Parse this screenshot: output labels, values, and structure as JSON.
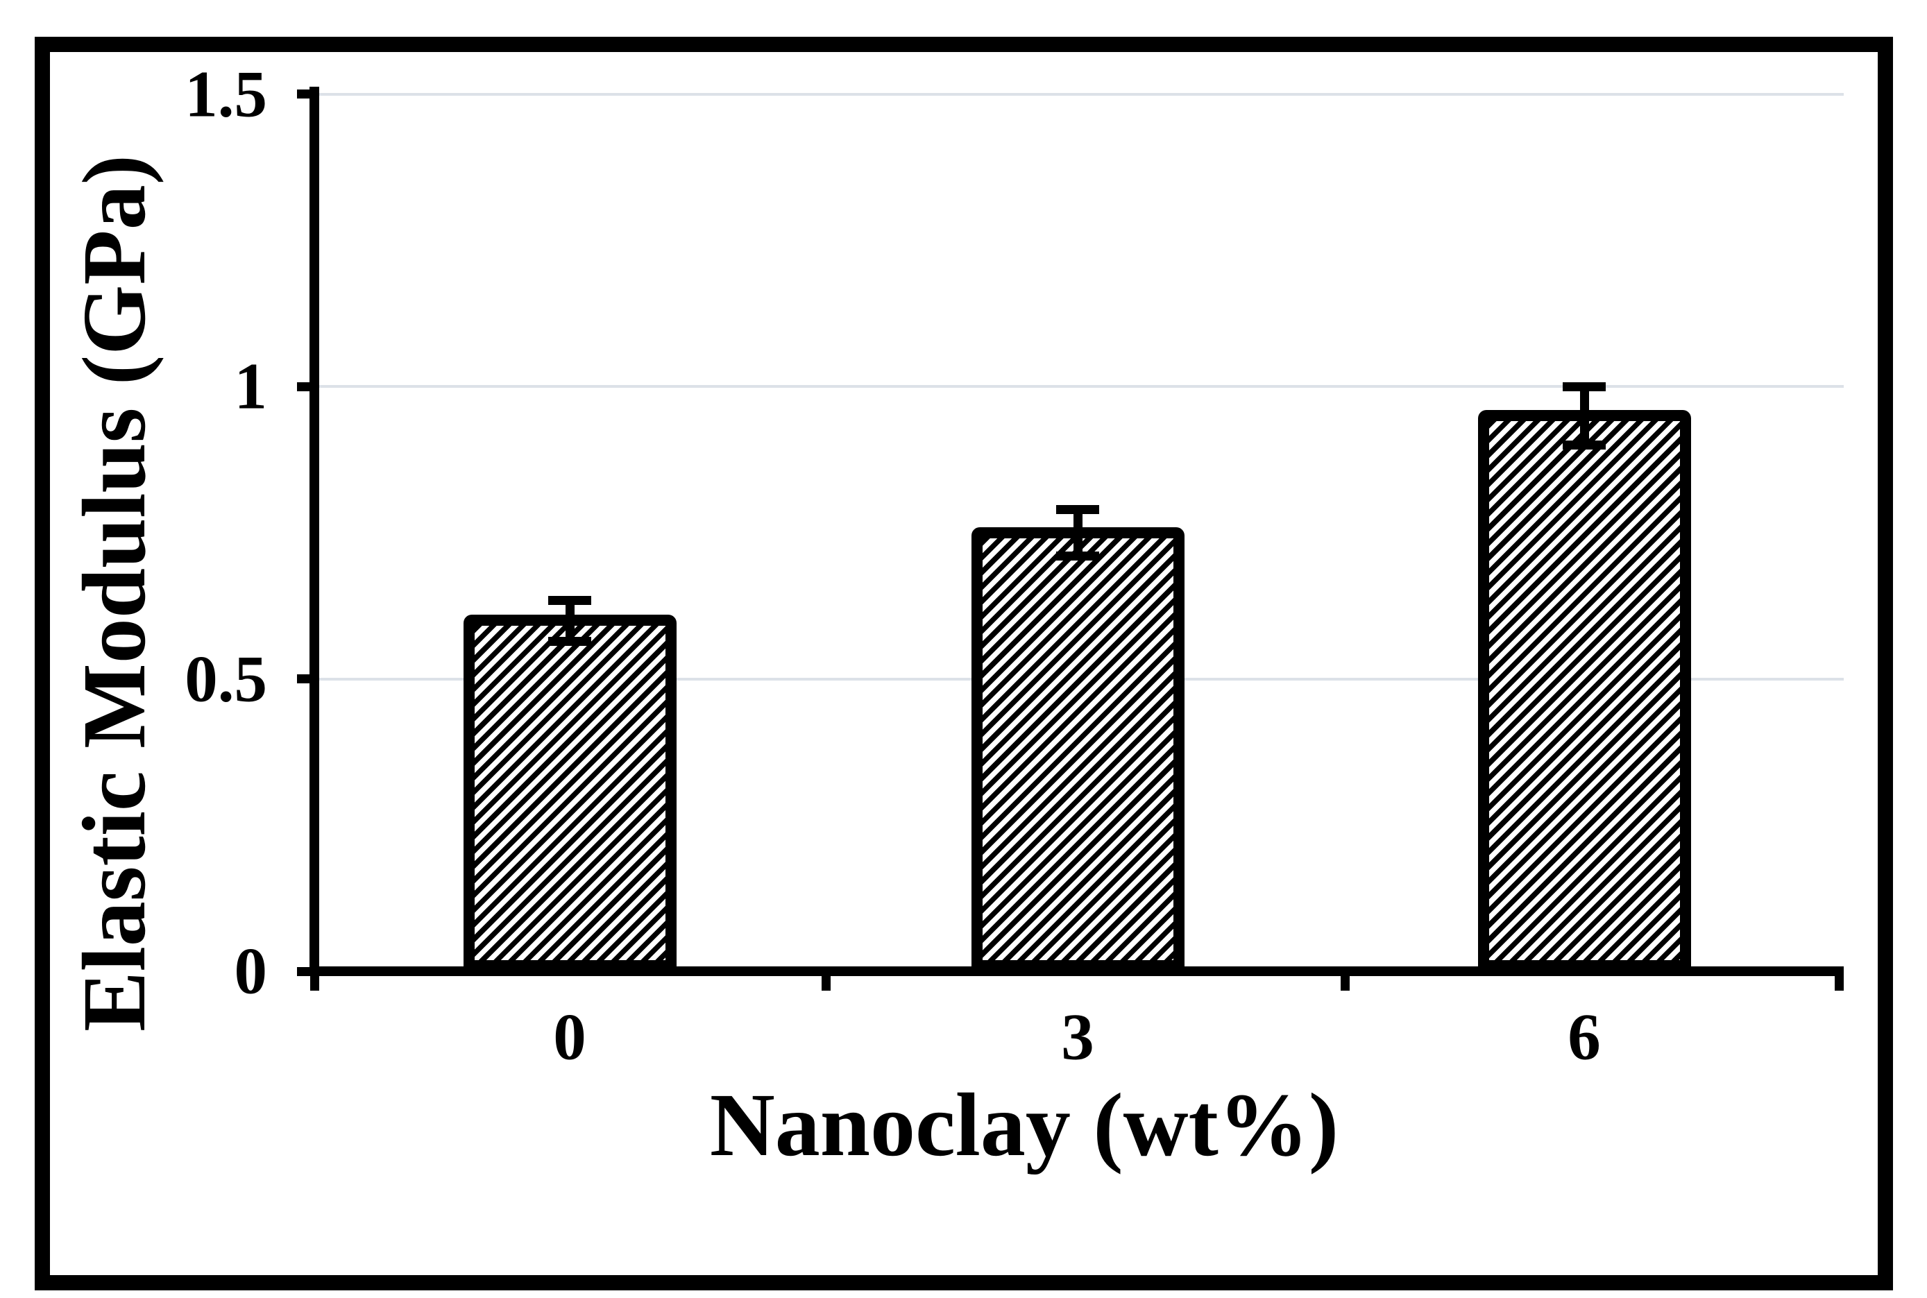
{
  "figure": {
    "background": "#ffffff",
    "border_color": "#000000",
    "accent_color": "#000000",
    "gridline_color": "#dce1e8"
  },
  "chart_data": {
    "type": "bar",
    "title": "",
    "categories": [
      "0",
      "3",
      "6"
    ],
    "values": [
      0.6,
      0.75,
      0.95
    ],
    "errors": [
      0.035,
      0.04,
      0.05
    ],
    "xlabel": "Nanoclay (wt%)",
    "ylabel": "Elastic Modulus (GPa)",
    "ylim": [
      0,
      1.5
    ],
    "yticks": [
      0,
      0.5,
      1,
      1.5
    ],
    "ytick_labels": [
      "0",
      "0.5",
      "1",
      "1.5"
    ],
    "grid": "horizontal-light",
    "legend": "none",
    "bar_style": {
      "fill": "diagonal-hatch",
      "hatch_direction": "/",
      "stroke_color": "#000000",
      "fill_background": "#ffffff"
    }
  }
}
